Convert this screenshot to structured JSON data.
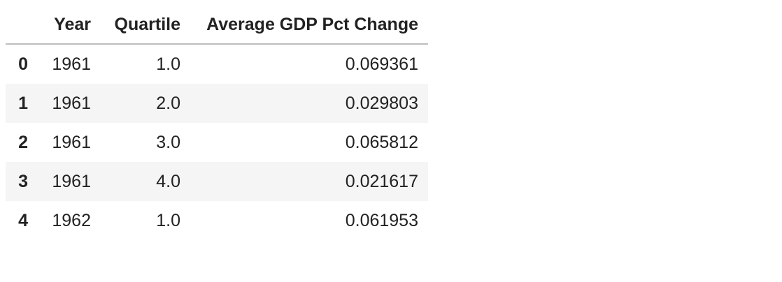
{
  "table": {
    "columns": [
      "",
      "Year",
      "Quartile",
      "Average GDP Pct Change"
    ],
    "rows": [
      {
        "index": "0",
        "year": "1961",
        "quartile": "1.0",
        "gdp_pct_change": "0.069361"
      },
      {
        "index": "1",
        "year": "1961",
        "quartile": "2.0",
        "gdp_pct_change": "0.029803"
      },
      {
        "index": "2",
        "year": "1961",
        "quartile": "3.0",
        "gdp_pct_change": "0.065812"
      },
      {
        "index": "3",
        "year": "1961",
        "quartile": "4.0",
        "gdp_pct_change": "0.021617"
      },
      {
        "index": "4",
        "year": "1962",
        "quartile": "1.0",
        "gdp_pct_change": "0.061953"
      }
    ]
  },
  "colors": {
    "text": "#222222",
    "stripe": "#f5f5f5",
    "header_rule": "#bdbdbd",
    "background": "#ffffff"
  }
}
